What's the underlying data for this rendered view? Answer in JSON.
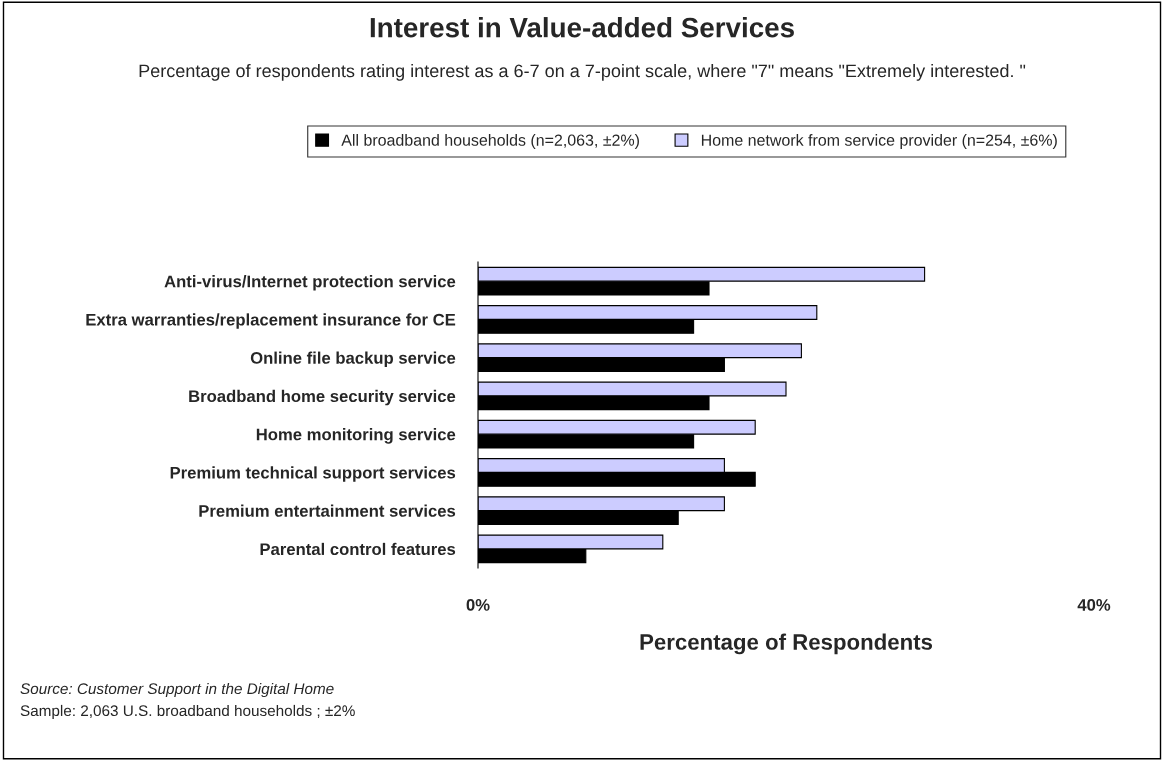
{
  "chart_data": {
    "type": "bar",
    "orientation": "horizontal",
    "title": "Interest in Value-added Services",
    "subtitle": "Percentage of respondents rating interest as a 6-7 on a 7-point scale, where \"7\" means \"Extremely interested. \"",
    "xlabel": "Percentage of Respondents",
    "categories": [
      "Anti-virus/Internet protection service",
      "Extra warranties/replacement insurance for CE",
      "Online file backup service",
      "Broadband home security service",
      "Home monitoring service",
      "Premium technical support services",
      "Premium entertainment services",
      "Parental control features"
    ],
    "series": [
      {
        "name": "All broadband households (n=2,063, ±2%)",
        "color": "#000000",
        "values": [
          15,
          14,
          16,
          15,
          14,
          18,
          13,
          7
        ]
      },
      {
        "name": "Home network from service provider (n=254, ±6%)",
        "color": "#ccccff",
        "values": [
          29,
          22,
          21,
          20,
          18,
          16,
          16,
          12
        ]
      }
    ],
    "xlim": [
      0,
      40
    ],
    "xticks": [
      {
        "value": 0,
        "label": "0%"
      },
      {
        "value": 40,
        "label": "40%"
      }
    ],
    "legend": "top",
    "grid": false,
    "annotations": [
      "Source: Customer Support in the Digital Home",
      "Sample: 2,063 U.S. broadband households ; ±2%"
    ]
  }
}
